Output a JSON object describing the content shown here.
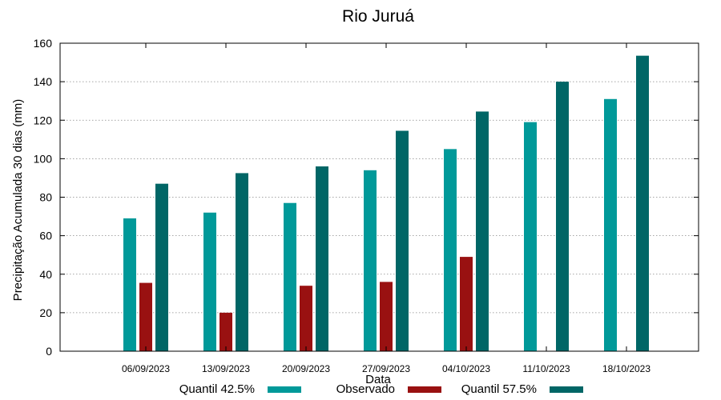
{
  "chart_data": {
    "type": "bar",
    "title": "Rio Juruá",
    "xlabel": "Data",
    "ylabel": "Precipitação Acumulada 30 dias (mm)",
    "ylim": [
      0,
      160
    ],
    "yticks": [
      0,
      20,
      40,
      60,
      80,
      100,
      120,
      140,
      160
    ],
    "grid": "horizontal dotted",
    "legend_position": "bottom",
    "categories": [
      "06/09/2023",
      "13/09/2023",
      "20/09/2023",
      "27/09/2023",
      "04/10/2023",
      "11/10/2023",
      "18/10/2023"
    ],
    "series": [
      {
        "name": "Quantil 42.5%",
        "color": "#009999",
        "values": [
          69,
          72,
          77,
          94,
          105,
          119,
          131
        ]
      },
      {
        "name": "Observado",
        "color": "#991111",
        "values": [
          35.5,
          20,
          34,
          36,
          49,
          null,
          null
        ]
      },
      {
        "name": "Quantil 57.5%",
        "color": "#006666",
        "values": [
          87,
          92.5,
          96,
          114.5,
          124.5,
          140,
          153.5
        ]
      }
    ]
  }
}
